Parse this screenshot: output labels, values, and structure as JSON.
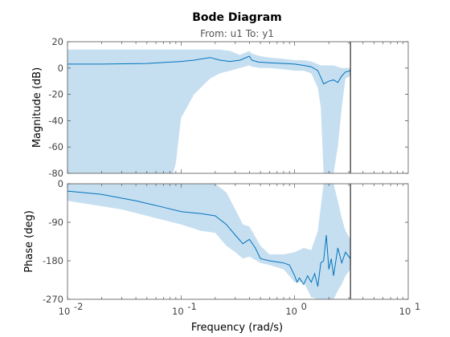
{
  "title": "Bode Diagram",
  "subtitle": "From: u1  To: y1",
  "colors": {
    "band": "#c6dff0",
    "line": "#0072bd",
    "marker": "#000000"
  },
  "chart_data": [
    {
      "type": "line",
      "panel": "magnitude",
      "ylabel": "Magnitude (dB)",
      "xscale": "log",
      "xlim": [
        0.01,
        10
      ],
      "ylim": [
        -80,
        20
      ],
      "yticks": [
        20,
        0,
        -20,
        -40,
        -60,
        -80
      ],
      "ytick_labels": [
        "20",
        "0",
        "-20",
        "-40",
        "-60",
        "-80"
      ],
      "vertical_marker_x": 3.1,
      "series": [
        {
          "x": [
            0.01,
            0.02,
            0.05,
            0.08,
            0.1,
            0.13,
            0.18,
            0.22,
            0.27,
            0.33,
            0.4,
            0.42,
            0.48,
            0.6,
            0.8,
            1.0,
            1.2,
            1.4,
            1.6,
            1.7,
            1.8,
            2.0,
            2.2,
            2.4,
            2.6,
            2.8,
            3.1
          ],
          "y": [
            3,
            3,
            3.5,
            4.5,
            5,
            6,
            8,
            6,
            5,
            6,
            9,
            6,
            4.5,
            4,
            3.5,
            3,
            2,
            1,
            -2,
            -7,
            -12,
            -10,
            -9,
            -11,
            -6,
            -3,
            -2
          ]
        }
      ],
      "band": {
        "x": [
          0.01,
          0.05,
          0.085,
          0.09,
          0.1,
          0.13,
          0.18,
          0.22,
          0.27,
          0.33,
          0.4,
          0.42,
          0.5,
          0.6,
          0.8,
          1.0,
          1.2,
          1.4,
          1.6,
          1.7,
          1.8,
          2.0,
          2.2,
          2.4,
          2.6,
          2.8,
          3.1
        ],
        "upper": [
          14,
          14,
          14,
          14,
          14,
          14,
          14,
          14,
          13,
          10,
          13,
          11,
          9,
          8,
          7,
          6,
          6,
          5,
          3,
          2,
          2,
          2,
          2,
          1,
          0,
          0,
          0
        ],
        "lower": [
          -80,
          -80,
          -80,
          -72,
          -38,
          -20,
          -8,
          -4,
          -2,
          0,
          2,
          1,
          0,
          0,
          -1,
          -2,
          -2,
          -4,
          -15,
          -30,
          -80,
          -80,
          -80,
          -60,
          -30,
          -8,
          -6
        ]
      }
    },
    {
      "type": "line",
      "panel": "phase",
      "ylabel": "Phase (deg)",
      "xlabel": "Frequency  (rad/s)",
      "xscale": "log",
      "xlim": [
        0.01,
        10
      ],
      "ylim": [
        -270,
        0
      ],
      "yticks": [
        0,
        -90,
        -180,
        -270
      ],
      "ytick_labels": [
        "0",
        "-90",
        "-180",
        "-270"
      ],
      "xticks": [
        0.01,
        0.1,
        1,
        10
      ],
      "xtick_labels": [
        {
          "base": "10",
          "exp": "-2"
        },
        {
          "base": "10",
          "exp": "-1"
        },
        {
          "base": "10",
          "exp": "0"
        },
        {
          "base": "10",
          "exp": "1"
        }
      ],
      "vertical_marker_x": 3.1,
      "series": [
        {
          "x": [
            0.01,
            0.02,
            0.04,
            0.07,
            0.1,
            0.15,
            0.2,
            0.25,
            0.3,
            0.35,
            0.4,
            0.45,
            0.5,
            0.6,
            0.8,
            0.9,
            1.0,
            1.05,
            1.1,
            1.2,
            1.3,
            1.4,
            1.5,
            1.6,
            1.7,
            1.8,
            1.9,
            2.0,
            2.1,
            2.2,
            2.4,
            2.6,
            2.8,
            3.1
          ],
          "y": [
            -17,
            -25,
            -40,
            -55,
            -65,
            -70,
            -75,
            -95,
            -120,
            -140,
            -130,
            -150,
            -175,
            -180,
            -185,
            -190,
            -215,
            -230,
            -220,
            -235,
            -215,
            -230,
            -210,
            -240,
            -185,
            -180,
            -120,
            -200,
            -175,
            -215,
            -150,
            -185,
            -160,
            -175
          ]
        }
      ],
      "band": {
        "x": [
          0.01,
          0.03,
          0.05,
          0.1,
          0.15,
          0.2,
          0.25,
          0.3,
          0.35,
          0.4,
          0.5,
          0.6,
          0.8,
          1.0,
          1.2,
          1.4,
          1.6,
          1.8,
          2.0,
          2.2,
          2.4,
          2.6,
          2.8,
          3.1
        ],
        "upper": [
          0,
          0,
          0,
          0,
          0,
          0,
          -20,
          -60,
          -95,
          -100,
          -145,
          -165,
          -165,
          -160,
          -150,
          -155,
          -110,
          0,
          0,
          0,
          -40,
          -80,
          -110,
          -130
        ],
        "lower": [
          -40,
          -60,
          -75,
          -95,
          -110,
          -115,
          -145,
          -160,
          -175,
          -170,
          -185,
          -190,
          -200,
          -230,
          -230,
          -265,
          -270,
          -270,
          -270,
          -270,
          -250,
          -235,
          -215,
          -200
        ]
      }
    }
  ]
}
